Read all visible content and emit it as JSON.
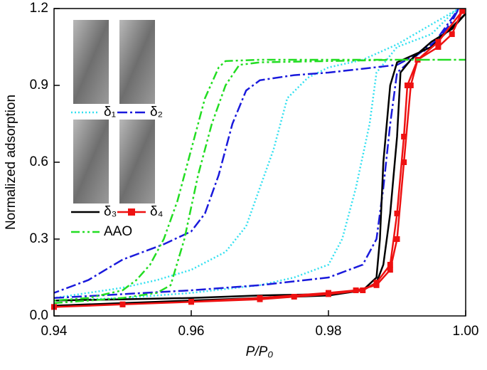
{
  "chart_data": {
    "type": "line",
    "xlabel": "P/P₀",
    "ylabel": "Normalized adsorption",
    "xlim": [
      0.94,
      1.0
    ],
    "ylim": [
      0,
      1.2
    ],
    "xticks": [
      0.94,
      0.96,
      0.98,
      {
        "value": 1,
        "label": "1.00"
      }
    ],
    "yticks": [
      {
        "value": 0,
        "label": "0.0"
      },
      0.3,
      0.6,
      0.9,
      1.2
    ],
    "series": [
      {
        "name": "δ₁",
        "color": "#33e0f0",
        "linestyle": "dotted",
        "x": [
          0.94,
          0.95,
          0.96,
          0.97,
          0.975,
          0.98,
          0.982,
          0.984,
          0.986,
          0.987,
          0.99,
          0.995,
          0.998,
          0.999,
          0.99,
          0.985,
          0.98,
          0.977,
          0.974,
          0.972,
          0.97,
          0.968,
          0.965,
          0.96,
          0.955,
          0.95,
          0.94
        ],
        "values": [
          0.06,
          0.07,
          0.09,
          0.12,
          0.15,
          0.2,
          0.3,
          0.5,
          0.75,
          0.95,
          1.05,
          1.1,
          1.18,
          1.2,
          1.06,
          1.0,
          0.97,
          0.93,
          0.85,
          0.65,
          0.5,
          0.35,
          0.25,
          0.18,
          0.14,
          0.11,
          0.07
        ]
      },
      {
        "name": "δ₂",
        "color": "#1a1adc",
        "linestyle": "dashdot",
        "x": [
          0.94,
          0.95,
          0.96,
          0.97,
          0.98,
          0.985,
          0.987,
          0.988,
          0.989,
          0.99,
          0.993,
          0.996,
          0.998,
          0.999,
          0.995,
          0.99,
          0.98,
          0.975,
          0.97,
          0.968,
          0.966,
          0.964,
          0.962,
          0.96,
          0.956,
          0.95,
          0.945,
          0.94
        ],
        "values": [
          0.07,
          0.085,
          0.1,
          0.12,
          0.15,
          0.2,
          0.3,
          0.5,
          0.75,
          0.95,
          1.02,
          1.08,
          1.15,
          1.2,
          1.05,
          0.98,
          0.95,
          0.94,
          0.92,
          0.88,
          0.75,
          0.55,
          0.4,
          0.33,
          0.28,
          0.22,
          0.14,
          0.09
        ]
      },
      {
        "name": "δ₃",
        "color": "#000000",
        "linestyle": "solid",
        "x": [
          0.94,
          0.95,
          0.96,
          0.97,
          0.98,
          0.985,
          0.987,
          0.988,
          0.989,
          0.99,
          0.9905,
          0.992,
          0.995,
          0.998,
          1,
          0.995,
          0.99,
          0.989,
          0.988,
          0.9875,
          0.987,
          0.985,
          0.98,
          0.97,
          0.96,
          0.95,
          0.94
        ],
        "values": [
          0.06,
          0.065,
          0.07,
          0.08,
          0.085,
          0.1,
          0.13,
          0.2,
          0.4,
          0.7,
          0.95,
          1.0,
          1.07,
          1.12,
          1.18,
          1.05,
          0.99,
          0.9,
          0.6,
          0.3,
          0.15,
          0.1,
          0.08,
          0.07,
          0.06,
          0.05,
          0.04
        ]
      },
      {
        "name": "δ₄",
        "color": "#ee1111",
        "linestyle": "solid",
        "marker": "square",
        "x": [
          0.94,
          0.95,
          0.96,
          0.97,
          0.975,
          0.98,
          0.985,
          0.987,
          0.989,
          0.99,
          0.991,
          0.9915,
          0.993,
          0.996,
          0.998,
          0.9995,
          0.996,
          0.993,
          0.992,
          0.991,
          0.99,
          0.989,
          0.987,
          0.984,
          0.98,
          0.97,
          0.96,
          0.95,
          0.94
        ],
        "values": [
          0.035,
          0.045,
          0.055,
          0.065,
          0.075,
          0.085,
          0.1,
          0.13,
          0.2,
          0.4,
          0.7,
          0.9,
          1.0,
          1.05,
          1.1,
          1.19,
          1.07,
          1.0,
          0.9,
          0.6,
          0.3,
          0.18,
          0.12,
          0.1,
          0.09,
          0.07,
          0.055,
          0.045,
          0.035
        ]
      },
      {
        "name": "AAO",
        "color": "#22dd22",
        "linestyle": "dashdotdot",
        "x": [
          0.94,
          0.95,
          0.955,
          0.957,
          0.959,
          0.961,
          0.963,
          0.965,
          0.967,
          0.97,
          0.98,
          0.99,
          1,
          0.98,
          0.97,
          0.965,
          0.964,
          0.962,
          0.96,
          0.958,
          0.956,
          0.954,
          0.952,
          0.95,
          0.945,
          0.94
        ],
        "values": [
          0.05,
          0.07,
          0.09,
          0.12,
          0.3,
          0.55,
          0.75,
          0.9,
          0.98,
          0.99,
          0.995,
          1.0,
          1.0,
          1.0,
          1.0,
          0.995,
          0.97,
          0.85,
          0.65,
          0.45,
          0.3,
          0.2,
          0.14,
          0.1,
          0.07,
          0.06
        ]
      }
    ]
  }
}
